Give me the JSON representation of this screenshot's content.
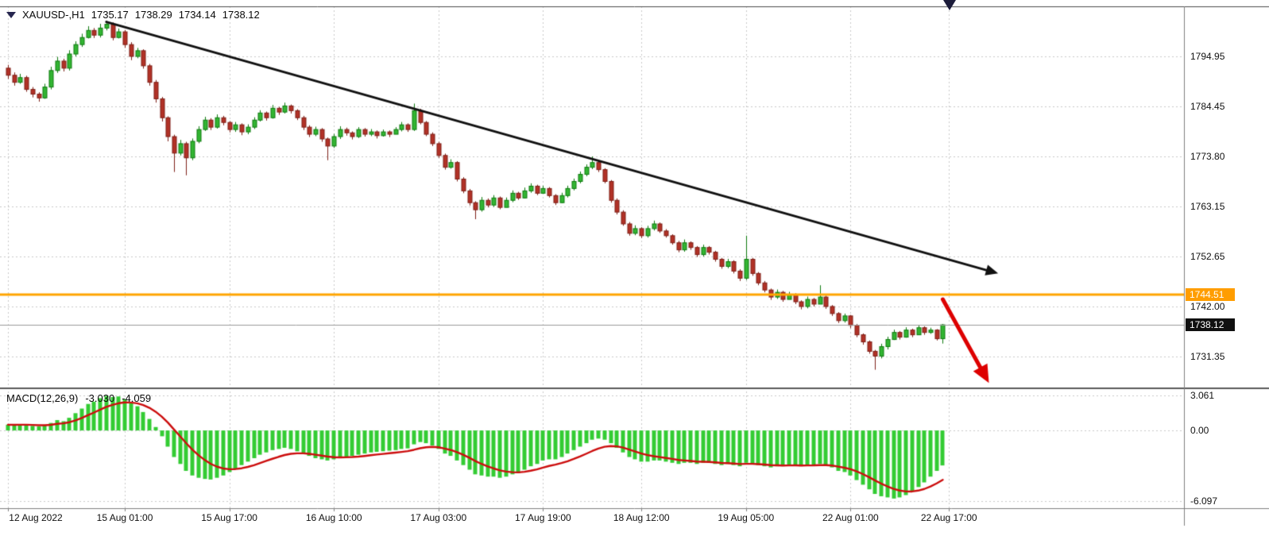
{
  "header": {
    "symbol": "XAUUSD-,H1",
    "open": "1735.17",
    "high": "1738.29",
    "low": "1734.14",
    "close": "1738.12"
  },
  "price_axis": {
    "current": "1738.12",
    "level": "1744.51",
    "tick_labels": [
      "1794.95",
      "1784.45",
      "1773.80",
      "1763.15",
      "1752.65",
      "1742.00",
      "1731.35"
    ]
  },
  "macd_panel": {
    "label": "MACD(12,26,9)",
    "main_value": "-3.030",
    "signal_value": "-4.059",
    "tick_labels": [
      "3.061",
      "0.00",
      "-6.097"
    ]
  },
  "time_axis": {
    "labels": [
      "12 Aug 2022",
      "15 Aug 01:00",
      "15 Aug 17:00",
      "16 Aug 10:00",
      "17 Aug 03:00",
      "17 Aug 19:00",
      "18 Aug 12:00",
      "19 Aug 05:00",
      "22 Aug 01:00",
      "22 Aug 17:00"
    ]
  },
  "colors": {
    "grid": "#c9c9c9",
    "level_line": "#ffa500",
    "current_line": "#9a9a9a",
    "bull_fill": "#33b533",
    "bull_border": "#0e7a0e",
    "bear_fill": "#b23227",
    "bear_border": "#7e1f17",
    "histogram": "#33cc33",
    "signal": "#cc0d0d",
    "trendline": "#111111",
    "alert_arrow": "#dd0000",
    "border": "#5a5a5a"
  },
  "chart_data": [
    {
      "type": "candlestick",
      "title": "XAUUSD- H1",
      "x_tick_indices": [
        0,
        19,
        36,
        53,
        70,
        87,
        103,
        120,
        137,
        153
      ],
      "y_range": [
        1725.0,
        1805.6
      ],
      "open_first": 1792.5,
      "closes": [
        1791.0,
        1789.5,
        1790.5,
        1788.0,
        1787.0,
        1786.2,
        1788.5,
        1792.0,
        1794.0,
        1792.5,
        1795.5,
        1797.5,
        1799.0,
        1800.5,
        1799.5,
        1801.0,
        1801.8,
        1799.0,
        1800.2,
        1797.5,
        1795.0,
        1796.2,
        1793.0,
        1789.5,
        1786.0,
        1782.0,
        1778.0,
        1774.5,
        1776.5,
        1773.5,
        1777.0,
        1779.5,
        1781.5,
        1780.0,
        1782.0,
        1781.0,
        1779.5,
        1780.5,
        1779.0,
        1780.0,
        1781.5,
        1783.0,
        1782.0,
        1784.0,
        1783.2,
        1784.5,
        1783.5,
        1782.0,
        1780.0,
        1778.5,
        1779.5,
        1777.5,
        1776.0,
        1778.0,
        1779.5,
        1778.8,
        1778.0,
        1779.5,
        1778.5,
        1779.0,
        1778.2,
        1779.0,
        1778.5,
        1779.5,
        1780.5,
        1779.5,
        1783.5,
        1781.0,
        1778.5,
        1776.5,
        1774.0,
        1771.5,
        1772.5,
        1769.0,
        1766.5,
        1764.0,
        1762.5,
        1764.5,
        1763.5,
        1765.0,
        1763.0,
        1764.5,
        1766.0,
        1765.0,
        1766.5,
        1767.5,
        1766.0,
        1767.0,
        1765.5,
        1764.0,
        1765.5,
        1767.0,
        1768.5,
        1770.0,
        1771.5,
        1772.5,
        1771.0,
        1768.5,
        1764.5,
        1762.0,
        1759.5,
        1757.5,
        1758.5,
        1757.0,
        1758.5,
        1759.5,
        1758.0,
        1757.0,
        1755.5,
        1754.0,
        1755.5,
        1754.5,
        1753.0,
        1754.5,
        1753.5,
        1752.0,
        1750.5,
        1751.5,
        1749.5,
        1748.0,
        1752.0,
        1749.0,
        1747.0,
        1745.5,
        1744.0,
        1745.0,
        1743.5,
        1744.5,
        1743.0,
        1742.0,
        1743.5,
        1742.5,
        1744.0,
        1742.0,
        1740.5,
        1739.0,
        1740.0,
        1738.0,
        1736.0,
        1734.5,
        1732.5,
        1731.5,
        1733.5,
        1735.0,
        1736.5,
        1735.5,
        1737.0,
        1736.0,
        1737.5,
        1736.5,
        1737.0,
        1735.17,
        1738.12
      ],
      "highs": [
        1793.2,
        1791.6,
        1791.3,
        1790.9,
        1788.5,
        1787.4,
        1789.2,
        1792.8,
        1794.9,
        1794.5,
        1796.3,
        1798.2,
        1799.8,
        1801.4,
        1801.0,
        1801.9,
        1802.5,
        1802.2,
        1800.9,
        1800.6,
        1798.0,
        1796.8,
        1796.5,
        1793.4,
        1790.0,
        1786.4,
        1782.3,
        1778.4,
        1777.3,
        1776.9,
        1777.6,
        1780.2,
        1782.2,
        1781.9,
        1782.7,
        1782.4,
        1781.3,
        1781.1,
        1780.8,
        1780.6,
        1782.1,
        1783.6,
        1783.3,
        1784.7,
        1784.3,
        1785.2,
        1784.8,
        1783.8,
        1782.4,
        1780.4,
        1780.1,
        1779.8,
        1777.8,
        1778.6,
        1780.2,
        1779.9,
        1779.1,
        1780.0,
        1779.8,
        1779.6,
        1779.3,
        1779.5,
        1779.3,
        1780.0,
        1781.1,
        1780.8,
        1785.0,
        1783.9,
        1781.3,
        1778.9,
        1776.9,
        1774.4,
        1773.2,
        1772.8,
        1769.4,
        1766.9,
        1764.3,
        1765.2,
        1764.9,
        1765.6,
        1765.3,
        1765.1,
        1766.6,
        1766.3,
        1767.2,
        1768.1,
        1767.8,
        1767.6,
        1767.3,
        1765.8,
        1766.1,
        1767.6,
        1769.1,
        1770.6,
        1772.1,
        1773.8,
        1772.9,
        1771.3,
        1768.8,
        1764.9,
        1762.4,
        1759.9,
        1759.2,
        1758.8,
        1759.1,
        1760.2,
        1759.8,
        1758.4,
        1757.3,
        1755.9,
        1756.2,
        1755.8,
        1754.8,
        1755.1,
        1754.8,
        1753.8,
        1752.3,
        1752.1,
        1751.8,
        1749.9,
        1757.0,
        1752.3,
        1749.3,
        1747.4,
        1745.8,
        1745.6,
        1745.3,
        1745.1,
        1744.8,
        1743.3,
        1744.1,
        1743.8,
        1746.5,
        1744.3,
        1742.3,
        1740.8,
        1740.5,
        1740.2,
        1738.3,
        1736.3,
        1734.8,
        1732.8,
        1734.1,
        1735.6,
        1737.1,
        1736.8,
        1737.6,
        1737.3,
        1738.1,
        1737.8,
        1737.5,
        1737.2,
        1738.29
      ],
      "lows": [
        1790.2,
        1788.8,
        1789.2,
        1787.5,
        1786.3,
        1785.4,
        1786.0,
        1788.0,
        1791.5,
        1791.8,
        1792.0,
        1795.0,
        1797.0,
        1798.8,
        1798.9,
        1799.0,
        1800.5,
        1798.4,
        1798.8,
        1796.8,
        1794.2,
        1794.6,
        1792.4,
        1788.8,
        1785.2,
        1781.2,
        1777.0,
        1770.5,
        1774.0,
        1769.8,
        1773.0,
        1776.6,
        1779.2,
        1779.4,
        1779.7,
        1780.4,
        1778.9,
        1779.0,
        1778.3,
        1778.5,
        1779.6,
        1781.2,
        1781.4,
        1781.8,
        1782.6,
        1782.9,
        1782.9,
        1781.5,
        1779.4,
        1777.9,
        1778.1,
        1776.9,
        1773.0,
        1775.6,
        1777.5,
        1778.2,
        1777.4,
        1777.7,
        1778.0,
        1778.1,
        1777.6,
        1778.0,
        1777.9,
        1778.6,
        1779.1,
        1779.0,
        1779.2,
        1780.6,
        1778.1,
        1776.0,
        1773.5,
        1771.0,
        1771.2,
        1768.5,
        1766.0,
        1763.4,
        1760.5,
        1762.1,
        1763.0,
        1763.1,
        1762.6,
        1763.3,
        1764.1,
        1764.6,
        1764.9,
        1766.1,
        1765.6,
        1765.9,
        1765.1,
        1763.5,
        1763.9,
        1765.1,
        1766.6,
        1768.1,
        1769.6,
        1771.1,
        1770.5,
        1768.1,
        1764.0,
        1761.5,
        1759.1,
        1757.0,
        1757.1,
        1756.5,
        1756.6,
        1758.1,
        1757.6,
        1756.6,
        1755.1,
        1753.5,
        1753.6,
        1754.0,
        1752.5,
        1752.6,
        1753.0,
        1751.5,
        1750.0,
        1750.1,
        1749.0,
        1747.4,
        1747.6,
        1748.5,
        1746.5,
        1745.0,
        1743.4,
        1743.6,
        1743.0,
        1743.6,
        1742.5,
        1741.4,
        1741.6,
        1742.0,
        1742.6,
        1741.5,
        1740.0,
        1738.5,
        1738.6,
        1737.4,
        1735.5,
        1733.9,
        1732.0,
        1728.6,
        1731.0,
        1732.9,
        1734.9,
        1735.0,
        1735.4,
        1735.5,
        1736.4,
        1736.0,
        1736.2,
        1734.8,
        1734.14
      ],
      "annotations": [
        {
          "type": "trendline",
          "from": {
            "index": 16,
            "price": 1802.3
          },
          "to": {
            "index": 161,
            "price": 1749.0
          },
          "width": 3
        },
        {
          "type": "down-arrow",
          "from": {
            "index": 152,
            "price": 1743.5
          },
          "to": {
            "index": 159.5,
            "price": 1725.8
          },
          "width": 5
        }
      ]
    },
    {
      "type": "bar",
      "name": "MACD(12,26,9)",
      "signal_period": 9,
      "y_range": [
        -6.6,
        3.45
      ],
      "histogram": [
        0.5,
        0.45,
        0.55,
        0.5,
        0.4,
        0.35,
        0.45,
        0.65,
        0.9,
        0.8,
        1.1,
        1.5,
        1.9,
        2.3,
        2.5,
        2.8,
        3.0,
        2.9,
        2.95,
        2.7,
        2.4,
        2.1,
        1.6,
        1.0,
        0.3,
        -0.5,
        -1.4,
        -2.3,
        -2.9,
        -3.5,
        -3.9,
        -4.1,
        -4.2,
        -4.25,
        -4.1,
        -3.9,
        -3.6,
        -3.3,
        -3.0,
        -2.7,
        -2.4,
        -2.1,
        -1.9,
        -1.7,
        -1.6,
        -1.5,
        -1.6,
        -1.8,
        -2.0,
        -2.2,
        -2.4,
        -2.5,
        -2.6,
        -2.5,
        -2.4,
        -2.3,
        -2.2,
        -2.1,
        -2.0,
        -1.9,
        -1.85,
        -1.8,
        -1.75,
        -1.7,
        -1.6,
        -1.55,
        -1.2,
        -1.0,
        -1.1,
        -1.3,
        -1.6,
        -2.0,
        -2.2,
        -2.6,
        -3.0,
        -3.4,
        -3.8,
        -3.9,
        -4.0,
        -4.0,
        -4.1,
        -4.0,
        -3.8,
        -3.7,
        -3.4,
        -3.1,
        -2.9,
        -2.6,
        -2.5,
        -2.5,
        -2.3,
        -2.0,
        -1.7,
        -1.4,
        -1.1,
        -0.8,
        -0.7,
        -0.8,
        -1.1,
        -1.5,
        -1.9,
        -2.3,
        -2.5,
        -2.7,
        -2.7,
        -2.6,
        -2.6,
        -2.7,
        -2.8,
        -2.9,
        -2.8,
        -2.8,
        -2.9,
        -2.8,
        -2.8,
        -2.9,
        -3.0,
        -2.9,
        -3.0,
        -3.1,
        -2.8,
        -2.9,
        -3.0,
        -3.1,
        -3.2,
        -3.1,
        -3.1,
        -3.0,
        -3.0,
        -3.1,
        -3.0,
        -3.0,
        -2.9,
        -3.0,
        -3.2,
        -3.5,
        -3.6,
        -3.9,
        -4.3,
        -4.7,
        -5.1,
        -5.5,
        -5.7,
        -5.8,
        -5.9,
        -5.8,
        -5.6,
        -5.3,
        -4.9,
        -4.5,
        -4.0,
        -3.5,
        -3.03
      ]
    }
  ]
}
